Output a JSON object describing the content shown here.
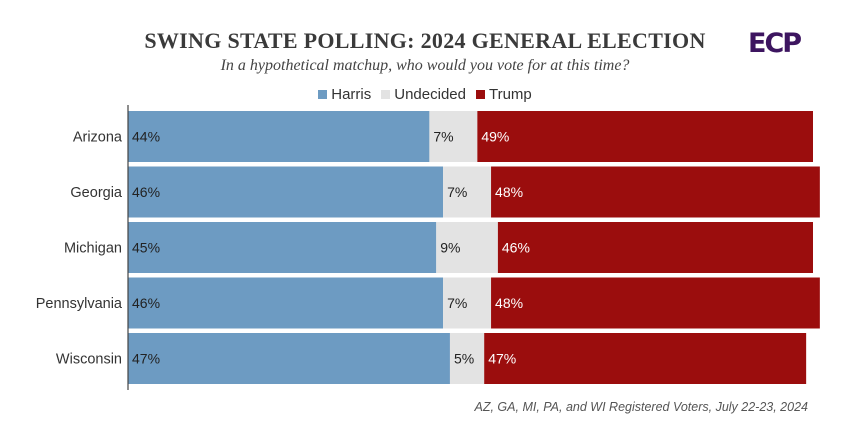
{
  "chart_data": {
    "type": "bar",
    "orientation": "horizontal",
    "stacked": "100%",
    "title": "SWING STATE POLLING: 2024 GENERAL ELECTION",
    "subtitle": "In a hypothetical matchup, who would you vote for at this time?",
    "categories": [
      "Arizona",
      "Georgia",
      "Michigan",
      "Pennsylvania",
      "Wisconsin"
    ],
    "series": [
      {
        "name": "Harris",
        "color": "#6d9bc2",
        "label_color": "#222222",
        "values": [
          44,
          46,
          45,
          46,
          47
        ]
      },
      {
        "name": "Undecided",
        "color": "#e3e3e3",
        "label_color": "#222222",
        "values": [
          7,
          7,
          9,
          7,
          5
        ]
      },
      {
        "name": "Trump",
        "color": "#9b0d0d",
        "label_color": "#ffffff",
        "values": [
          49,
          48,
          46,
          48,
          47
        ]
      }
    ],
    "xlim": [
      0,
      100
    ],
    "value_suffix": "%",
    "legend_position": "top-center",
    "footnote": "AZ, GA, MI, PA, and WI Registered Voters, July 22-23, 2024"
  },
  "logo_text": "ECP"
}
